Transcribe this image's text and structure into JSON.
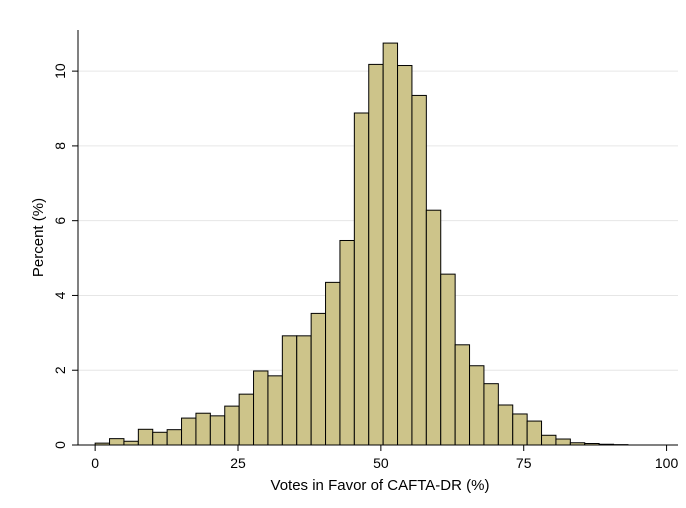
{
  "chart_data": {
    "type": "bar",
    "xlabel": "Votes in Favor of CAFTA-DR (%)",
    "ylabel": "Percent (%)",
    "xlim": [
      -3,
      102
    ],
    "ylim": [
      0,
      11.1
    ],
    "xticks": [
      0,
      25,
      50,
      75,
      100
    ],
    "yticks": [
      0,
      2,
      4,
      6,
      8,
      10
    ],
    "grid": true,
    "bin_width": 2.52,
    "bins": [
      {
        "x": 1.26,
        "y": 0.05
      },
      {
        "x": 3.78,
        "y": 0.17
      },
      {
        "x": 6.3,
        "y": 0.1
      },
      {
        "x": 8.82,
        "y": 0.42
      },
      {
        "x": 11.34,
        "y": 0.34
      },
      {
        "x": 13.86,
        "y": 0.41
      },
      {
        "x": 16.38,
        "y": 0.72
      },
      {
        "x": 18.9,
        "y": 0.85
      },
      {
        "x": 21.42,
        "y": 0.78
      },
      {
        "x": 23.94,
        "y": 1.04
      },
      {
        "x": 26.46,
        "y": 1.36
      },
      {
        "x": 28.98,
        "y": 1.98
      },
      {
        "x": 31.5,
        "y": 1.85
      },
      {
        "x": 34.02,
        "y": 2.92
      },
      {
        "x": 36.54,
        "y": 2.92
      },
      {
        "x": 39.06,
        "y": 3.52
      },
      {
        "x": 41.58,
        "y": 4.35
      },
      {
        "x": 44.1,
        "y": 5.47
      },
      {
        "x": 46.62,
        "y": 8.88
      },
      {
        "x": 49.14,
        "y": 10.18
      },
      {
        "x": 51.66,
        "y": 10.75
      },
      {
        "x": 54.18,
        "y": 10.15
      },
      {
        "x": 56.7,
        "y": 9.35
      },
      {
        "x": 59.22,
        "y": 6.28
      },
      {
        "x": 61.74,
        "y": 4.57
      },
      {
        "x": 64.26,
        "y": 2.68
      },
      {
        "x": 66.78,
        "y": 2.12
      },
      {
        "x": 69.3,
        "y": 1.64
      },
      {
        "x": 71.82,
        "y": 1.07
      },
      {
        "x": 74.34,
        "y": 0.83
      },
      {
        "x": 76.86,
        "y": 0.64
      },
      {
        "x": 79.38,
        "y": 0.26
      },
      {
        "x": 81.9,
        "y": 0.16
      },
      {
        "x": 84.42,
        "y": 0.06
      },
      {
        "x": 86.94,
        "y": 0.04
      },
      {
        "x": 89.46,
        "y": 0.02
      },
      {
        "x": 91.98,
        "y": 0.01
      }
    ],
    "colors": {
      "bar_fill": "#cdc48a",
      "bar_stroke": "#000000",
      "grid": "#e6e6e6",
      "axis": "#000000"
    }
  }
}
